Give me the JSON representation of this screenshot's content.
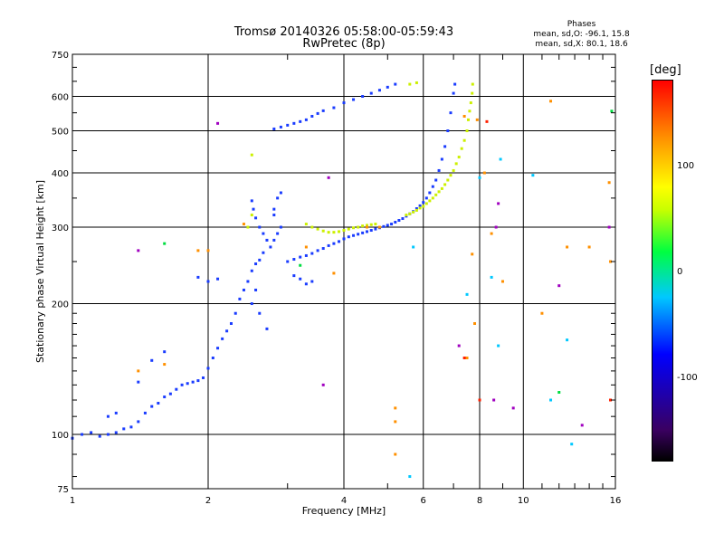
{
  "chart_data": {
    "type": "scatter",
    "title": "Tromsø 20140326 05:58:00-05:59:43",
    "subtitle": "RwPretec (8p)",
    "xlabel": "Frequency [MHz]",
    "ylabel": "Stationary phase Virtual Height [km]",
    "x_scale": "log",
    "y_scale": "log",
    "xlim": [
      1,
      16
    ],
    "ylim": [
      75,
      750
    ],
    "x_ticks": [
      1,
      2,
      4,
      6,
      8,
      10,
      16
    ],
    "y_ticks": [
      75,
      100,
      200,
      300,
      400,
      500,
      600,
      750
    ],
    "grid": true,
    "phases": {
      "title": "Phases",
      "line_o": "mean, sd,O: -96.1, 15.8",
      "line_x": "mean, sd,X: 80.1, 18.6"
    },
    "colorbar": {
      "label": "[deg]",
      "ticks": [
        100,
        0,
        -100
      ],
      "range": [
        -180,
        180
      ],
      "colors": [
        "#000000",
        "#3a0060",
        "#0000ff",
        "#00c8ff",
        "#00ff40",
        "#c8ff00",
        "#ffff00",
        "#ff9000",
        "#ff0000"
      ]
    },
    "series": [
      {
        "color": "#1a3cff",
        "points": [
          [
            1.0,
            98
          ],
          [
            1.05,
            100
          ],
          [
            1.1,
            101
          ],
          [
            1.15,
            99
          ],
          [
            1.2,
            100
          ],
          [
            1.25,
            101
          ],
          [
            1.3,
            103
          ],
          [
            1.35,
            104
          ],
          [
            1.4,
            107
          ],
          [
            1.45,
            112
          ],
          [
            1.5,
            116
          ],
          [
            1.55,
            118
          ],
          [
            1.6,
            122
          ],
          [
            1.65,
            124
          ],
          [
            1.7,
            127
          ],
          [
            1.75,
            130
          ],
          [
            1.8,
            131
          ],
          [
            1.85,
            132
          ],
          [
            1.9,
            133
          ],
          [
            1.95,
            135
          ],
          [
            2.0,
            142
          ],
          [
            2.05,
            150
          ],
          [
            2.1,
            158
          ],
          [
            2.15,
            166
          ],
          [
            2.2,
            173
          ],
          [
            2.25,
            180
          ],
          [
            2.3,
            190
          ],
          [
            2.35,
            205
          ],
          [
            2.4,
            215
          ],
          [
            2.45,
            225
          ],
          [
            2.5,
            238
          ],
          [
            2.55,
            247
          ],
          [
            2.6,
            252
          ],
          [
            2.65,
            262
          ],
          [
            2.5,
            200
          ],
          [
            2.6,
            190
          ],
          [
            2.7,
            175
          ],
          [
            2.55,
            215
          ],
          [
            2.5,
            345
          ],
          [
            2.52,
            330
          ],
          [
            2.55,
            315
          ],
          [
            2.6,
            300
          ],
          [
            2.65,
            290
          ],
          [
            2.7,
            280
          ],
          [
            2.75,
            270
          ],
          [
            2.8,
            280
          ],
          [
            2.85,
            290
          ],
          [
            2.8,
            330
          ],
          [
            2.85,
            350
          ],
          [
            2.9,
            360
          ],
          [
            2.8,
            320
          ],
          [
            2.9,
            300
          ],
          [
            3.0,
            250
          ],
          [
            3.1,
            253
          ],
          [
            3.2,
            256
          ],
          [
            3.3,
            258
          ],
          [
            3.4,
            261
          ],
          [
            3.5,
            265
          ],
          [
            3.6,
            268
          ],
          [
            3.7,
            272
          ],
          [
            3.8,
            275
          ],
          [
            3.9,
            278
          ],
          [
            4.0,
            282
          ],
          [
            4.1,
            285
          ],
          [
            4.2,
            287
          ],
          [
            4.3,
            289
          ],
          [
            4.4,
            291
          ],
          [
            4.5,
            293
          ],
          [
            4.6,
            295
          ],
          [
            4.7,
            297
          ],
          [
            4.8,
            299
          ],
          [
            4.9,
            301
          ],
          [
            5.0,
            303
          ],
          [
            5.1,
            305
          ],
          [
            5.2,
            308
          ],
          [
            5.3,
            311
          ],
          [
            5.4,
            314
          ],
          [
            5.5,
            318
          ],
          [
            5.6,
            322
          ],
          [
            5.7,
            326
          ],
          [
            5.8,
            331
          ],
          [
            5.9,
            336
          ],
          [
            6.0,
            342
          ],
          [
            6.1,
            350
          ],
          [
            6.2,
            360
          ],
          [
            6.3,
            372
          ],
          [
            6.4,
            385
          ],
          [
            6.5,
            405
          ],
          [
            6.6,
            430
          ],
          [
            6.7,
            460
          ],
          [
            6.8,
            500
          ],
          [
            6.9,
            550
          ],
          [
            7.0,
            610
          ],
          [
            7.05,
            640
          ],
          [
            2.8,
            505
          ],
          [
            2.9,
            510
          ],
          [
            3.0,
            515
          ],
          [
            3.1,
            520
          ],
          [
            3.2,
            525
          ],
          [
            3.3,
            530
          ],
          [
            3.4,
            540
          ],
          [
            3.5,
            548
          ],
          [
            3.6,
            556
          ],
          [
            3.8,
            565
          ],
          [
            4.0,
            580
          ],
          [
            4.2,
            590
          ],
          [
            4.4,
            600
          ],
          [
            4.6,
            610
          ],
          [
            4.8,
            620
          ],
          [
            5.0,
            630
          ],
          [
            5.2,
            640
          ],
          [
            1.2,
            110
          ],
          [
            1.25,
            112
          ],
          [
            1.4,
            132
          ],
          [
            1.5,
            148
          ],
          [
            1.6,
            155
          ],
          [
            1.9,
            230
          ],
          [
            2.0,
            225
          ],
          [
            2.1,
            228
          ],
          [
            3.1,
            232
          ],
          [
            3.2,
            228
          ],
          [
            3.3,
            222
          ],
          [
            3.4,
            225
          ]
        ]
      },
      {
        "color": "#ccf000",
        "points": [
          [
            3.3,
            305
          ],
          [
            3.4,
            300
          ],
          [
            3.5,
            297
          ],
          [
            3.6,
            294
          ],
          [
            3.7,
            292
          ],
          [
            3.8,
            292
          ],
          [
            3.9,
            293
          ],
          [
            4.0,
            295
          ],
          [
            4.1,
            297
          ],
          [
            4.2,
            299
          ],
          [
            4.3,
            300
          ],
          [
            4.4,
            302
          ],
          [
            4.5,
            303
          ],
          [
            4.6,
            304
          ],
          [
            4.7,
            305
          ],
          [
            5.5,
            320
          ],
          [
            5.6,
            322
          ],
          [
            5.7,
            325
          ],
          [
            5.8,
            328
          ],
          [
            5.9,
            332
          ],
          [
            6.0,
            335
          ],
          [
            6.1,
            340
          ],
          [
            6.2,
            345
          ],
          [
            6.3,
            350
          ],
          [
            6.4,
            356
          ],
          [
            6.5,
            362
          ],
          [
            6.6,
            368
          ],
          [
            6.7,
            376
          ],
          [
            6.8,
            385
          ],
          [
            6.9,
            395
          ],
          [
            7.0,
            405
          ],
          [
            7.1,
            420
          ],
          [
            7.2,
            435
          ],
          [
            7.3,
            455
          ],
          [
            7.4,
            475
          ],
          [
            7.5,
            500
          ],
          [
            7.55,
            530
          ],
          [
            7.6,
            555
          ],
          [
            7.65,
            580
          ],
          [
            7.7,
            610
          ],
          [
            7.72,
            640
          ],
          [
            5.6,
            640
          ],
          [
            5.8,
            645
          ],
          [
            2.45,
            300
          ],
          [
            2.5,
            320
          ],
          [
            2.5,
            440
          ]
        ]
      },
      {
        "color": "#ff9000",
        "points": [
          [
            5.2,
            115
          ],
          [
            5.2,
            107
          ],
          [
            5.2,
            90
          ],
          [
            7.7,
            260
          ],
          [
            7.8,
            180
          ],
          [
            7.5,
            150
          ],
          [
            8.2,
            400
          ],
          [
            8.5,
            290
          ],
          [
            9.0,
            225
          ],
          [
            11.0,
            190
          ],
          [
            12.5,
            270
          ],
          [
            14.0,
            270
          ],
          [
            15.5,
            380
          ],
          [
            15.6,
            250
          ],
          [
            2.0,
            265
          ],
          [
            1.9,
            265
          ],
          [
            2.4,
            305
          ],
          [
            3.3,
            270
          ],
          [
            3.8,
            235
          ],
          [
            4.5,
            300
          ],
          [
            4.8,
            300
          ],
          [
            7.4,
            540
          ],
          [
            7.9,
            530
          ],
          [
            11.5,
            585
          ],
          [
            1.4,
            140
          ],
          [
            1.6,
            145
          ]
        ]
      },
      {
        "color": "#00c8ff",
        "points": [
          [
            5.6,
            80
          ],
          [
            7.5,
            210
          ],
          [
            8.8,
            160
          ],
          [
            8.9,
            430
          ],
          [
            8.5,
            230
          ],
          [
            11.5,
            120
          ],
          [
            12.5,
            165
          ],
          [
            12.8,
            95
          ],
          [
            5.7,
            270
          ],
          [
            8.0,
            390
          ],
          [
            10.5,
            395
          ]
        ]
      },
      {
        "color": "#a000c0",
        "points": [
          [
            3.7,
            390
          ],
          [
            7.2,
            160
          ],
          [
            8.6,
            120
          ],
          [
            9.5,
            115
          ],
          [
            8.8,
            340
          ],
          [
            8.7,
            300
          ],
          [
            12.0,
            220
          ],
          [
            15.5,
            300
          ],
          [
            13.5,
            105
          ],
          [
            1.4,
            265
          ],
          [
            2.1,
            520
          ],
          [
            3.6,
            130
          ]
        ]
      },
      {
        "color": "#00dd40",
        "points": [
          [
            1.6,
            275
          ],
          [
            3.2,
            245
          ],
          [
            12.0,
            125
          ],
          [
            15.7,
            555
          ]
        ]
      },
      {
        "color": "#ff2000",
        "points": [
          [
            8.0,
            120
          ],
          [
            7.4,
            150
          ],
          [
            15.6,
            120
          ],
          [
            8.3,
            525
          ]
        ]
      }
    ]
  }
}
